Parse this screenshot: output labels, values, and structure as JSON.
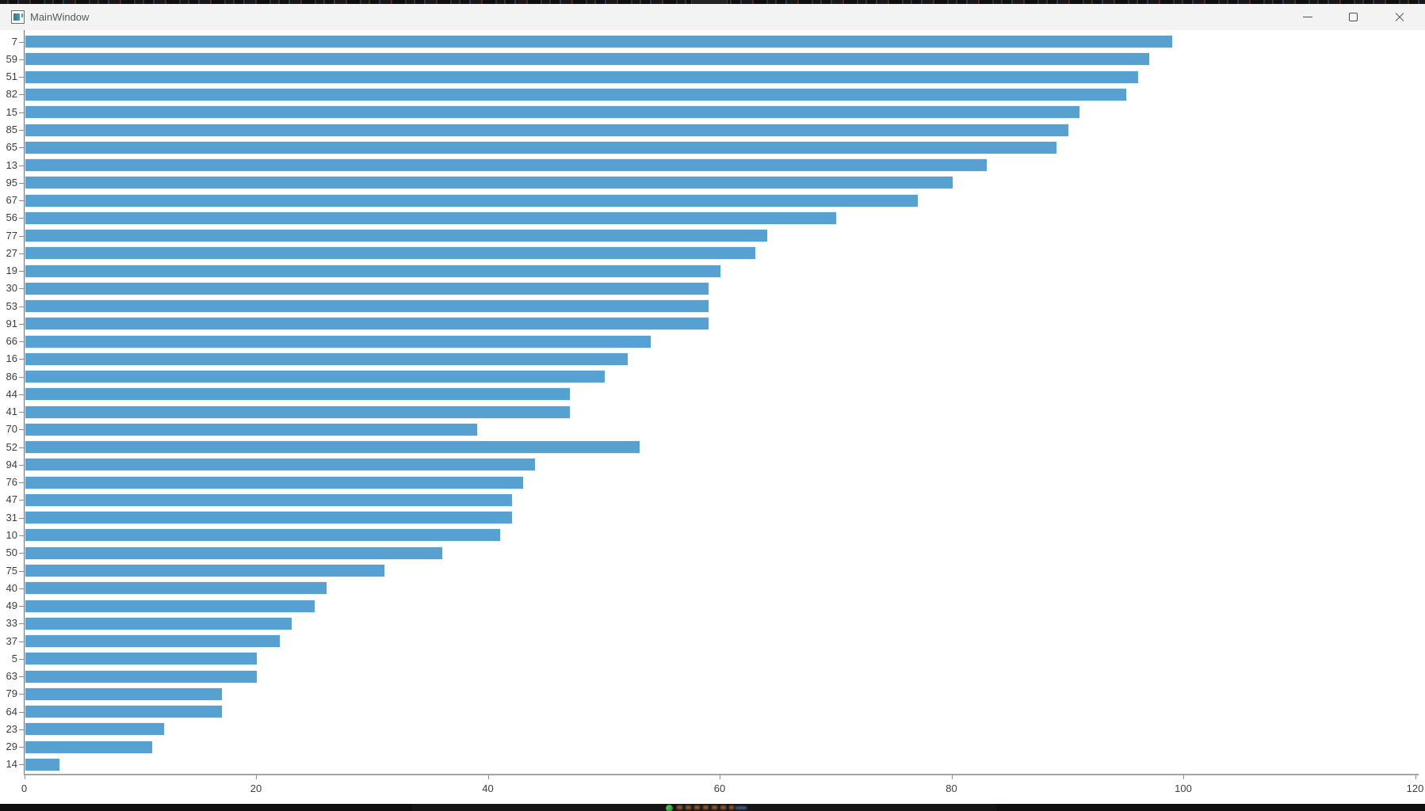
{
  "window": {
    "title": "MainWindow"
  },
  "chart_data": {
    "type": "bar",
    "orientation": "horizontal",
    "title": "",
    "xlabel": "",
    "ylabel": "",
    "categories": [
      "7",
      "59",
      "51",
      "82",
      "15",
      "85",
      "65",
      "13",
      "95",
      "67",
      "56",
      "77",
      "27",
      "19",
      "30",
      "53",
      "91",
      "66",
      "16",
      "86",
      "44",
      "41",
      "70",
      "52",
      "94",
      "76",
      "47",
      "31",
      "10",
      "50",
      "75",
      "40",
      "49",
      "33",
      "37",
      "5",
      "63",
      "79",
      "64",
      "23",
      "29",
      "14"
    ],
    "values": [
      99,
      97,
      96,
      95,
      91,
      90,
      89,
      83,
      80,
      77,
      70,
      64,
      63,
      60,
      59,
      59,
      59,
      54,
      52,
      50,
      47,
      47,
      39,
      53,
      44,
      43,
      42,
      42,
      41,
      36,
      31,
      26,
      25,
      23,
      22,
      20,
      20,
      17,
      17,
      12,
      11,
      3
    ],
    "x_ticks": [
      "0",
      "20",
      "40",
      "60",
      "80",
      "100",
      "120"
    ],
    "x_tick_values": [
      0,
      20,
      40,
      60,
      80,
      100,
      120
    ],
    "xlim": [
      0,
      120
    ],
    "grid": false,
    "legend": null,
    "bar_color": "#57a0d2",
    "axis_color": "#8c8c8c",
    "label_color": "#3d3d3d"
  }
}
